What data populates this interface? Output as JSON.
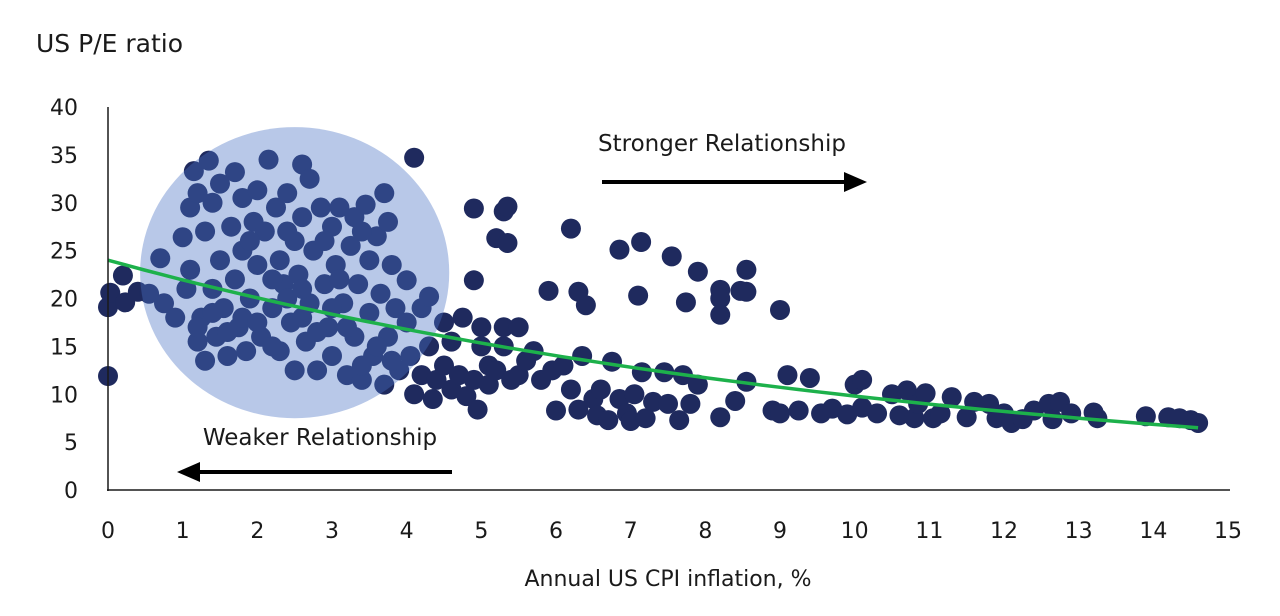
{
  "chart_data": {
    "type": "scatter",
    "title": "US P/E ratio",
    "xlabel": "Annual US CPI inflation, %",
    "ylabel": "",
    "xlim": [
      0,
      15
    ],
    "ylim": [
      0,
      40
    ],
    "x_ticks": [
      "0",
      "1",
      "2",
      "3",
      "4",
      "5",
      "6",
      "7",
      "8",
      "9",
      "10",
      "11",
      "12",
      "13",
      "14",
      "15"
    ],
    "y_ticks": [
      "0",
      "5",
      "10",
      "15",
      "20",
      "25",
      "30",
      "35",
      "40"
    ],
    "grid": false,
    "colors": {
      "points": "#1f2a5e",
      "trend": "#1db14b",
      "highlight": "#4872c4"
    },
    "annotations": {
      "stronger": "Stronger Relationship",
      "weaker": "Weaker Relationship"
    },
    "highlight_region": {
      "center": [
        2.5,
        22.7
      ],
      "radius_x": 2.07,
      "radius_y": 15.2
    },
    "trend": {
      "form": "exponential",
      "start": [
        0,
        24
      ],
      "end": [
        14.6,
        6.5
      ]
    },
    "points": [
      [
        0,
        11.9
      ],
      [
        0,
        19.1
      ],
      [
        0.03,
        20.6
      ],
      [
        0.2,
        22.4
      ],
      [
        0.23,
        19.6
      ],
      [
        0.4,
        20.7
      ],
      [
        0.55,
        20.5
      ],
      [
        4.1,
        34.7
      ],
      [
        4.9,
        29.4
      ],
      [
        5.3,
        29.1
      ],
      [
        5.35,
        29.6
      ],
      [
        5.2,
        26.3
      ],
      [
        5.35,
        25.8
      ],
      [
        4.9,
        21.9
      ],
      [
        6.2,
        27.3
      ],
      [
        5.9,
        20.8
      ],
      [
        6.3,
        20.7
      ],
      [
        6.4,
        19.3
      ],
      [
        6.85,
        25.1
      ],
      [
        7.14,
        25.9
      ],
      [
        7.1,
        20.3
      ],
      [
        7.55,
        24.4
      ],
      [
        7.9,
        22.8
      ],
      [
        7.74,
        19.6
      ],
      [
        8.2,
        20.9
      ],
      [
        8.2,
        20.0
      ],
      [
        8.2,
        18.3
      ],
      [
        8.47,
        20.8
      ],
      [
        8.55,
        23.0
      ],
      [
        8.55,
        20.7
      ],
      [
        9.0,
        18.8
      ],
      [
        0.7,
        24.2
      ],
      [
        0.75,
        19.5
      ],
      [
        0.9,
        18
      ],
      [
        1,
        26.4
      ],
      [
        1.05,
        21
      ],
      [
        1.1,
        23
      ],
      [
        1.1,
        29.5
      ],
      [
        1.15,
        33.3
      ],
      [
        1.2,
        31
      ],
      [
        1.2,
        15.5
      ],
      [
        1.25,
        18
      ],
      [
        1.3,
        13.5
      ],
      [
        1.3,
        27
      ],
      [
        1.35,
        34.4
      ],
      [
        1.4,
        30
      ],
      [
        1.4,
        21
      ],
      [
        1.45,
        16
      ],
      [
        1.5,
        24
      ],
      [
        1.5,
        32
      ],
      [
        1.55,
        19
      ],
      [
        1.6,
        14
      ],
      [
        1.65,
        27.5
      ],
      [
        1.7,
        33.2
      ],
      [
        1.7,
        22
      ],
      [
        1.75,
        17
      ],
      [
        1.8,
        30.5
      ],
      [
        1.8,
        25
      ],
      [
        1.85,
        14.5
      ],
      [
        1.9,
        20
      ],
      [
        1.95,
        28
      ],
      [
        2,
        31.3
      ],
      [
        2,
        23.5
      ],
      [
        2.05,
        16
      ],
      [
        2.1,
        27
      ],
      [
        2.15,
        34.5
      ],
      [
        2.2,
        19
      ],
      [
        2.25,
        29.5
      ],
      [
        2.3,
        14.5
      ],
      [
        2.3,
        24
      ],
      [
        2.35,
        21.5
      ],
      [
        2.4,
        31
      ],
      [
        2.45,
        17.5
      ],
      [
        2.5,
        26
      ],
      [
        2.5,
        12.5
      ],
      [
        2.55,
        22.5
      ],
      [
        2.6,
        34
      ],
      [
        2.6,
        28.5
      ],
      [
        2.65,
        15.5
      ],
      [
        2.7,
        32.5
      ],
      [
        2.7,
        19.5
      ],
      [
        2.75,
        25
      ],
      [
        2.8,
        12.5
      ],
      [
        2.85,
        29.5
      ],
      [
        2.9,
        21.5
      ],
      [
        2.95,
        17
      ],
      [
        3,
        27.5
      ],
      [
        3,
        14
      ],
      [
        3.05,
        23.5
      ],
      [
        3.1,
        29.5
      ],
      [
        3.15,
        19.5
      ],
      [
        3.2,
        12
      ],
      [
        3.25,
        25.5
      ],
      [
        3.3,
        28.5
      ],
      [
        3.3,
        16
      ],
      [
        3.35,
        21.5
      ],
      [
        3.4,
        11.5
      ],
      [
        3.45,
        29.8
      ],
      [
        3.5,
        24
      ],
      [
        3.5,
        18.5
      ],
      [
        3.55,
        14
      ],
      [
        3.6,
        26.5
      ],
      [
        3.65,
        20.5
      ],
      [
        3.7,
        31
      ],
      [
        3.7,
        11
      ],
      [
        3.75,
        28
      ],
      [
        3.75,
        16
      ],
      [
        3.8,
        23.5
      ],
      [
        3.85,
        19
      ],
      [
        3.9,
        12.5
      ],
      [
        4,
        21.9
      ],
      [
        4,
        17.5
      ],
      [
        4.05,
        14
      ],
      [
        4.1,
        10
      ],
      [
        4.2,
        19
      ],
      [
        4.2,
        12
      ],
      [
        4.3,
        20.2
      ],
      [
        4.3,
        15
      ],
      [
        4.35,
        9.5
      ],
      [
        1.2,
        17
      ],
      [
        1.4,
        18.5
      ],
      [
        1.6,
        16.5
      ],
      [
        1.8,
        18
      ],
      [
        2,
        17.5
      ],
      [
        2.2,
        15
      ],
      [
        2.4,
        20
      ],
      [
        2.6,
        18
      ],
      [
        2.8,
        16.5
      ],
      [
        3,
        19
      ],
      [
        3.2,
        17
      ],
      [
        3.4,
        13
      ],
      [
        3.6,
        15
      ],
      [
        3.8,
        13.5
      ],
      [
        2.2,
        22
      ],
      [
        2.6,
        21
      ],
      [
        3.1,
        22
      ],
      [
        1.9,
        26
      ],
      [
        2.4,
        27
      ],
      [
        2.9,
        26
      ],
      [
        3.4,
        27
      ],
      [
        4.4,
        11.5
      ],
      [
        4.5,
        13
      ],
      [
        4.5,
        17.5
      ],
      [
        4.6,
        10.5
      ],
      [
        4.6,
        15.5
      ],
      [
        4.7,
        12
      ],
      [
        4.75,
        18
      ],
      [
        4.8,
        9.8
      ],
      [
        4.9,
        11.5
      ],
      [
        4.95,
        8.4
      ],
      [
        5,
        15
      ],
      [
        5,
        17
      ],
      [
        5.1,
        13
      ],
      [
        5.1,
        11
      ],
      [
        5.2,
        12.5
      ],
      [
        5.3,
        17
      ],
      [
        5.3,
        15
      ],
      [
        5.4,
        11.5
      ],
      [
        5.5,
        17
      ],
      [
        5.5,
        12
      ],
      [
        5.6,
        13.5
      ],
      [
        5.7,
        14.5
      ],
      [
        5.8,
        11.5
      ],
      [
        5.95,
        12.5
      ],
      [
        6,
        8.3
      ],
      [
        6.1,
        13
      ],
      [
        6.2,
        10.5
      ],
      [
        6.3,
        8.4
      ],
      [
        6.35,
        14
      ],
      [
        6.5,
        9.5
      ],
      [
        6.55,
        7.8
      ],
      [
        6.6,
        10.5
      ],
      [
        6.7,
        7.3
      ],
      [
        6.75,
        13.4
      ],
      [
        6.85,
        9.5
      ],
      [
        6.95,
        8
      ],
      [
        7,
        7.2
      ],
      [
        7.05,
        10
      ],
      [
        7.15,
        12.3
      ],
      [
        7.2,
        7.5
      ],
      [
        7.3,
        9.2
      ],
      [
        7.45,
        12.3
      ],
      [
        7.5,
        9
      ],
      [
        7.65,
        7.3
      ],
      [
        7.7,
        12
      ],
      [
        7.8,
        9
      ],
      [
        7.9,
        11
      ],
      [
        8.2,
        7.6
      ],
      [
        8.4,
        9.3
      ],
      [
        8.55,
        11.3
      ],
      [
        8.9,
        8.3
      ],
      [
        9,
        8
      ],
      [
        9.1,
        12
      ],
      [
        9.25,
        8.3
      ],
      [
        9.4,
        11.7
      ],
      [
        9.55,
        8
      ],
      [
        9.7,
        8.5
      ],
      [
        9.9,
        7.9
      ],
      [
        10,
        11
      ],
      [
        10.1,
        11.5
      ],
      [
        10.1,
        8.6
      ],
      [
        10.3,
        8
      ],
      [
        10.5,
        10
      ],
      [
        10.6,
        7.8
      ],
      [
        10.7,
        10.4
      ],
      [
        10.8,
        7.5
      ],
      [
        10.85,
        9
      ],
      [
        10.95,
        10.1
      ],
      [
        11.05,
        7.5
      ],
      [
        11.15,
        8
      ],
      [
        11.3,
        9.7
      ],
      [
        11.5,
        7.6
      ],
      [
        11.6,
        9.2
      ],
      [
        11.8,
        9
      ],
      [
        11.9,
        7.5
      ],
      [
        12,
        8
      ],
      [
        12.1,
        7
      ],
      [
        12.25,
        7.4
      ],
      [
        12.4,
        8.3
      ],
      [
        12.6,
        9
      ],
      [
        12.65,
        7.4
      ],
      [
        12.75,
        9.2
      ],
      [
        12.9,
        8
      ],
      [
        13.2,
        8.1
      ],
      [
        13.25,
        7.5
      ],
      [
        13.9,
        7.7
      ],
      [
        14.2,
        7.6
      ],
      [
        14.35,
        7.5
      ],
      [
        14.5,
        7.3
      ],
      [
        14.6,
        7
      ]
    ]
  }
}
